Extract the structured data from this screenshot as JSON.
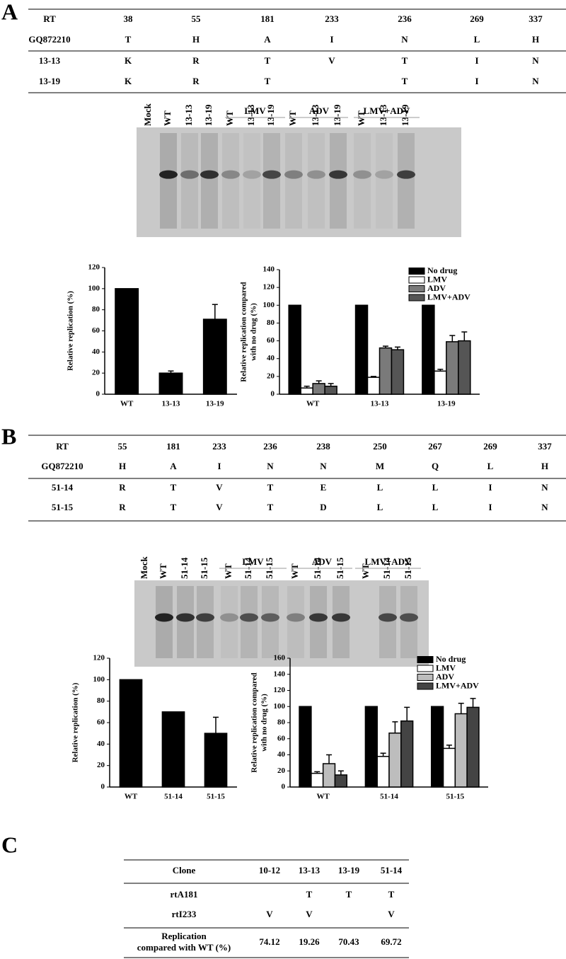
{
  "panel_labels": [
    "A",
    "B",
    "C"
  ],
  "table_a": {
    "rows": [
      [
        "RT",
        "38",
        "55",
        "181",
        "233",
        "236",
        "269",
        "337"
      ],
      [
        "GQ872210",
        "T",
        "H",
        "A",
        "I",
        "N",
        "L",
        "H"
      ],
      [
        "13-13",
        "K",
        "R",
        "T",
        "V",
        "T",
        "I",
        "N"
      ],
      [
        "13-19",
        "K",
        "R",
        "T",
        null,
        "T",
        "I",
        "N"
      ]
    ]
  },
  "gel_a": {
    "groups": [
      "LMV",
      "ADV",
      "LMV+ADV"
    ],
    "lanes": [
      "Mock",
      "WT",
      "13-13",
      "13-19",
      "WT",
      "13-13",
      "13-19",
      "WT",
      "13-13",
      "13-19",
      "WT",
      "13-13",
      "13-19"
    ]
  },
  "table_b": {
    "rows": [
      [
        "RT",
        "55",
        "181",
        "233",
        "236",
        "238",
        "250",
        "267",
        "269",
        "337"
      ],
      [
        "GQ872210",
        "H",
        "A",
        "I",
        "N",
        "N",
        "M",
        "Q",
        "L",
        "H"
      ],
      [
        "51-14",
        "R",
        "T",
        "V",
        "T",
        "E",
        "L",
        "L",
        "I",
        "N"
      ],
      [
        "51-15",
        "R",
        "T",
        "V",
        "T",
        "D",
        "L",
        "L",
        "I",
        "N"
      ]
    ]
  },
  "gel_b": {
    "groups": [
      "LMV",
      "ADV",
      "LMV+ADV"
    ],
    "lanes": [
      "Mock",
      "WT",
      "51-14",
      "51-15",
      "WT",
      "51-14",
      "51-15",
      "WT",
      "51-14",
      "51-15",
      "WT",
      "51-14",
      "51-15"
    ]
  },
  "table_c": {
    "rows": [
      [
        "Clone",
        "10-12",
        "13-13",
        "13-19",
        "51-14"
      ],
      [
        "rtA181",
        null,
        "T",
        "T",
        "T"
      ],
      [
        "rtI233",
        "V",
        "V",
        null,
        "V"
      ],
      [
        [
          "Replication",
          "compared with WT (%)"
        ],
        "74.12",
        "19.26",
        "70.43",
        "69.72"
      ]
    ]
  },
  "chart_data": [
    {
      "type": "bar",
      "ylabel": [
        "Relative replication (%)"
      ],
      "categories": [
        "WT",
        "13-13",
        "13-19"
      ],
      "values": [
        100,
        20,
        71
      ],
      "errors": [
        null,
        2,
        14
      ],
      "color": "#000000",
      "ylim": [
        0,
        120
      ],
      "yticks": [
        0,
        20,
        40,
        60,
        80,
        100,
        120
      ]
    },
    {
      "type": "grouped_bar",
      "ylabel": [
        "Relative replication compared",
        "with no drug (%)"
      ],
      "categories": [
        "WT",
        "13-13",
        "13-19"
      ],
      "legend": "upper right",
      "ylim": [
        0,
        140
      ],
      "yticks": [
        0,
        20,
        40,
        60,
        80,
        100,
        120,
        140
      ],
      "series": [
        {
          "name": "No drug",
          "color": "#000000",
          "values": [
            100,
            100,
            100
          ],
          "errors": [
            null,
            null,
            null
          ]
        },
        {
          "name": "LMV",
          "color": "#ffffff",
          "values": [
            7,
            19,
            26
          ],
          "errors": [
            2,
            1,
            2
          ]
        },
        {
          "name": "ADV",
          "color": "#7a7a7a",
          "values": [
            12,
            52,
            59
          ],
          "errors": [
            3,
            2,
            7
          ]
        },
        {
          "name": "LMV+ADV",
          "color": "#555555",
          "values": [
            9,
            50,
            60
          ],
          "errors": [
            3,
            3,
            10
          ]
        }
      ]
    },
    {
      "type": "bar",
      "ylabel": [
        "Relative replication (%)"
      ],
      "categories": [
        "WT",
        "51-14",
        "51-15"
      ],
      "values": [
        100,
        70,
        50
      ],
      "errors": [
        null,
        null,
        15
      ],
      "color": "#000000",
      "ylim": [
        0,
        120
      ],
      "yticks": [
        0,
        20,
        40,
        60,
        80,
        100,
        120
      ]
    },
    {
      "type": "grouped_bar",
      "ylabel": [
        "Relative replication compared",
        "with no drug (%)"
      ],
      "categories": [
        "WT",
        "51-14",
        "51-15"
      ],
      "legend": "upper right",
      "ylim": [
        0,
        160
      ],
      "yticks": [
        0,
        20,
        40,
        60,
        80,
        100,
        120,
        140,
        160
      ],
      "series": [
        {
          "name": "No drug",
          "color": "#000000",
          "values": [
            100,
            100,
            100
          ],
          "errors": [
            null,
            null,
            null
          ]
        },
        {
          "name": "LMV",
          "color": "#ffffff",
          "values": [
            17,
            38,
            48
          ],
          "errors": [
            2,
            4,
            4
          ]
        },
        {
          "name": "ADV",
          "color": "#bdbdbd",
          "values": [
            29,
            67,
            91
          ],
          "errors": [
            11,
            14,
            13
          ]
        },
        {
          "name": "LMV+ADV",
          "color": "#444444",
          "values": [
            15,
            82,
            99
          ],
          "errors": [
            5,
            17,
            11
          ]
        }
      ]
    }
  ]
}
